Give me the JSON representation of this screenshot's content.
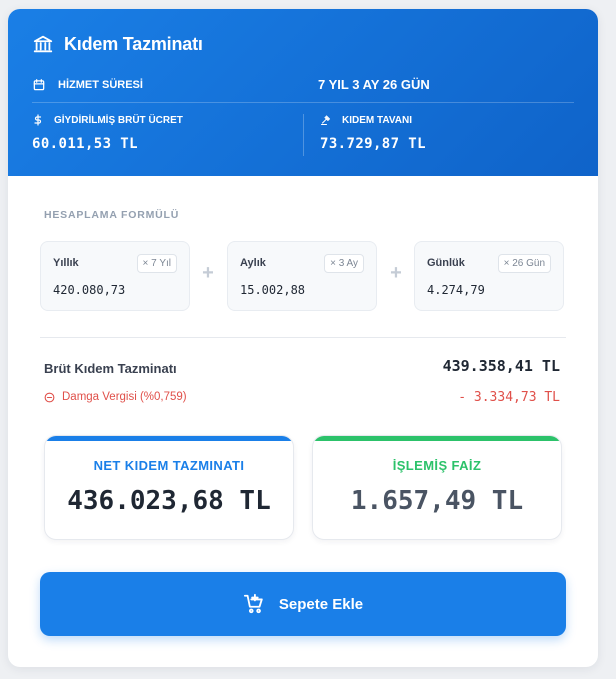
{
  "header": {
    "title": "Kıdem Tazminatı",
    "service_label": "HİZMET SÜRESİ",
    "service_value": "7 YIL 3 AY 26 GÜN",
    "wage_label": "GİYDİRİLMİŞ BRÜT ÜCRET",
    "wage_value": "60.011,53 TL",
    "ceiling_label": "KIDEM TAVANI",
    "ceiling_value": "73.729,87 TL"
  },
  "formula": {
    "section_label": "HESAPLAMA FORMÜLÜ",
    "items": [
      {
        "name": "Yıllık",
        "multiplier": "× 7 Yıl",
        "amount": "420.080,73"
      },
      {
        "name": "Aylık",
        "multiplier": "× 3 Ay",
        "amount": "15.002,88"
      },
      {
        "name": "Günlük",
        "multiplier": "× 26 Gün",
        "amount": "4.274,79"
      }
    ],
    "operator": "+"
  },
  "summary": {
    "gross_label": "Brüt Kıdem Tazminatı",
    "gross_value": "439.358,41 TL",
    "stamp_label": "Damga Vergisi (%0,759)",
    "stamp_value": "- 3.334,73 TL"
  },
  "results": {
    "net_label": "NET KIDEM TAZMINATI",
    "net_value": "436.023,68 TL",
    "interest_label": "İŞLEMİŞ FAİZ",
    "interest_value": "1.657,49 TL"
  },
  "cta": {
    "label": "Sepete Ekle"
  },
  "colors": {
    "primary": "#1a7fe8",
    "success": "#2cc26a",
    "danger": "#e0504a"
  }
}
